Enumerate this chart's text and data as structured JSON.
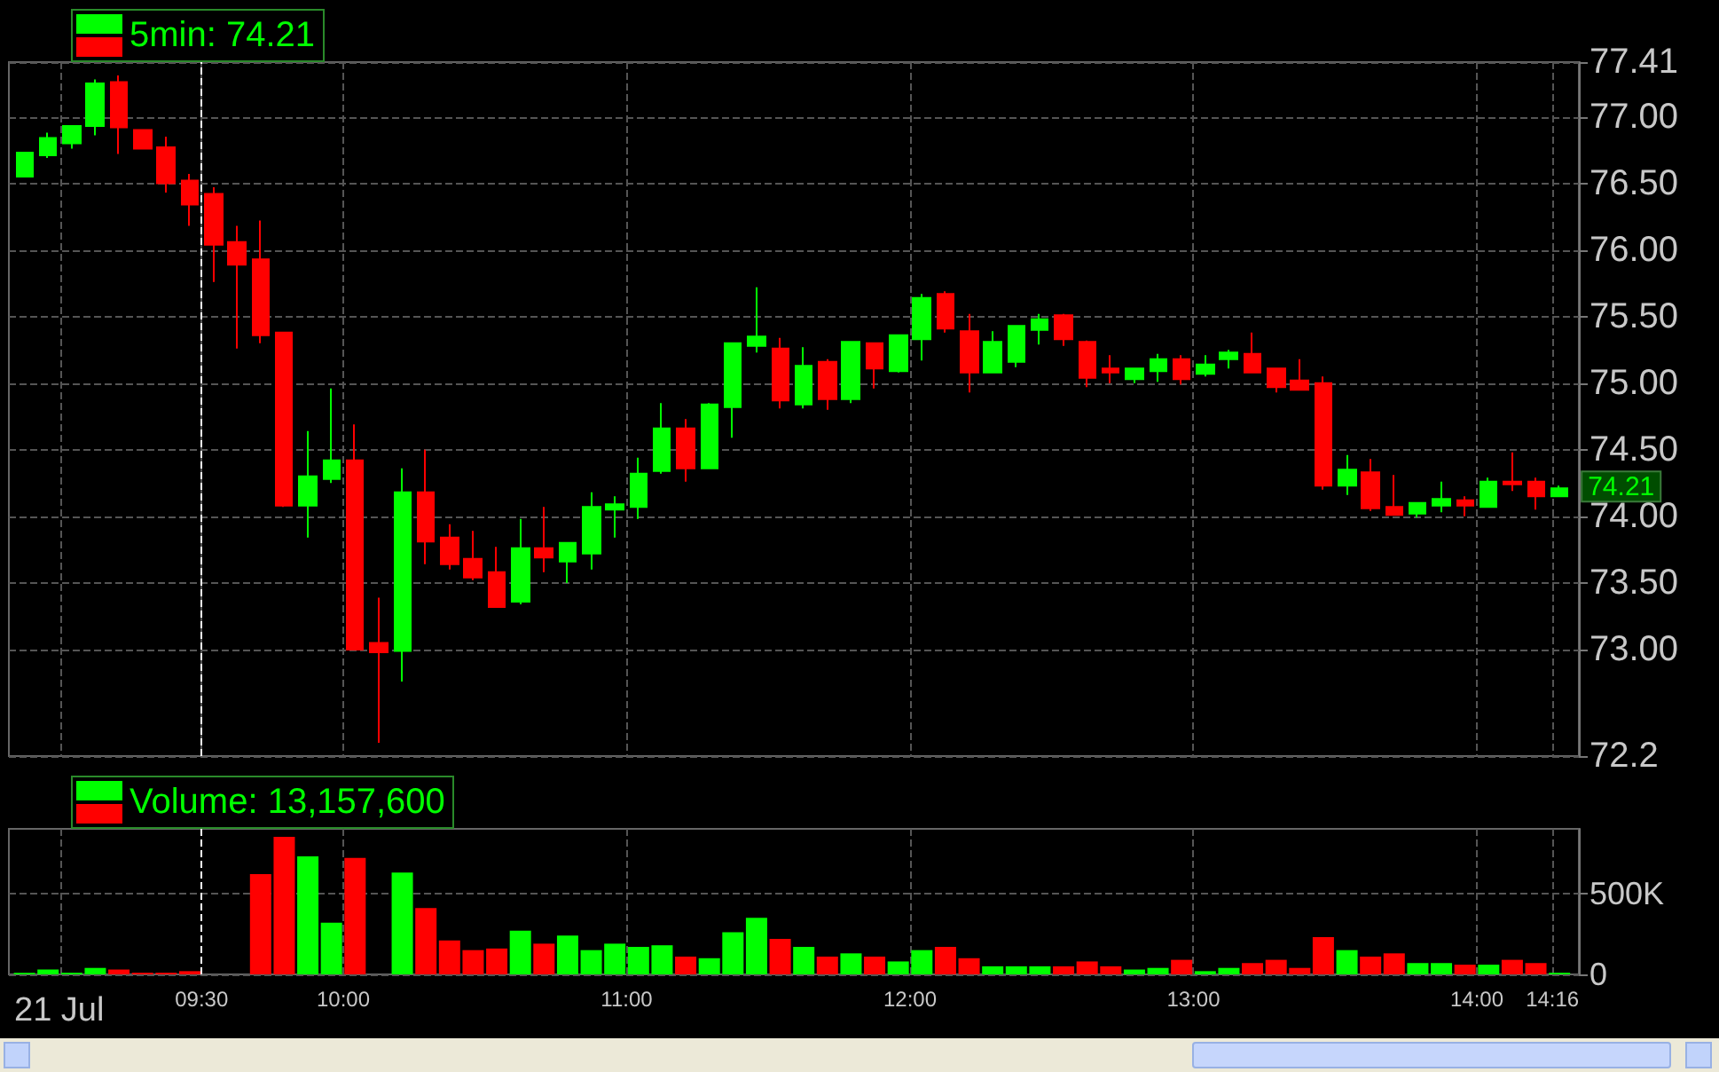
{
  "chart_data": [
    {
      "type": "candlestick",
      "title": "5min: 74.21",
      "x": [
        8.875,
        8.9583,
        9.0417,
        9.125,
        9.2083,
        9.2917,
        9.375,
        9.4583,
        9.5417,
        9.625,
        9.7083,
        9.7917,
        9.875,
        9.9583,
        10.0417,
        10.125,
        10.2083,
        10.2917,
        10.375,
        10.4583,
        10.5417,
        10.625,
        10.7083,
        10.7917,
        10.875,
        10.9583,
        11.0417,
        11.125,
        11.2083,
        11.2917,
        11.375,
        11.4583,
        11.5417,
        11.625,
        11.7083,
        11.7917,
        11.875,
        11.9583,
        12.0417,
        12.125,
        12.2083,
        12.2917,
        12.375,
        12.4583,
        12.5417,
        12.625,
        12.7083,
        12.7917,
        12.875,
        12.9583,
        13.0417,
        13.125,
        13.2083,
        13.2917,
        13.375,
        13.4583,
        13.5417,
        13.625,
        13.7083,
        13.7917,
        13.875,
        13.9583,
        14.0417,
        14.125,
        14.2083,
        14.2917
      ],
      "ohlc": [
        [
          76.55,
          76.73,
          76.55,
          76.73
        ],
        [
          76.71,
          76.88,
          76.69,
          76.84
        ],
        [
          76.8,
          76.93,
          76.76,
          76.93
        ],
        [
          76.93,
          77.28,
          76.86,
          77.25
        ],
        [
          77.26,
          77.31,
          76.72,
          76.92
        ],
        [
          76.9,
          76.9,
          76.76,
          76.76
        ],
        [
          76.77,
          76.85,
          76.43,
          76.5
        ],
        [
          76.52,
          76.57,
          76.18,
          76.34
        ],
        [
          76.42,
          76.47,
          75.76,
          76.04
        ],
        [
          76.06,
          76.18,
          75.26,
          75.89
        ],
        [
          75.93,
          76.22,
          75.3,
          75.36
        ],
        [
          75.38,
          75.38,
          74.07,
          74.08
        ],
        [
          74.08,
          74.64,
          73.84,
          74.3
        ],
        [
          74.28,
          74.96,
          74.25,
          74.42
        ],
        [
          74.42,
          74.69,
          73.0,
          73.0
        ],
        [
          73.05,
          73.39,
          72.3,
          72.98
        ],
        [
          72.99,
          74.36,
          72.76,
          74.18
        ],
        [
          74.18,
          74.5,
          73.64,
          73.81
        ],
        [
          73.84,
          73.94,
          73.6,
          73.64
        ],
        [
          73.68,
          73.89,
          73.52,
          73.54
        ],
        [
          73.58,
          73.77,
          73.32,
          73.32
        ],
        [
          73.36,
          73.98,
          73.34,
          73.76
        ],
        [
          73.76,
          74.07,
          73.58,
          73.69
        ],
        [
          73.66,
          73.8,
          73.5,
          73.8
        ],
        [
          73.72,
          74.18,
          73.6,
          74.07
        ],
        [
          74.05,
          74.15,
          73.84,
          74.09
        ],
        [
          74.07,
          74.44,
          73.98,
          74.32
        ],
        [
          74.34,
          74.85,
          74.32,
          74.66
        ],
        [
          74.66,
          74.73,
          74.26,
          74.36
        ],
        [
          74.36,
          74.85,
          74.36,
          74.84
        ],
        [
          74.82,
          75.3,
          74.59,
          75.3
        ],
        [
          75.28,
          75.72,
          75.23,
          75.35
        ],
        [
          75.26,
          75.34,
          74.81,
          74.87
        ],
        [
          74.84,
          75.27,
          74.81,
          75.13
        ],
        [
          75.16,
          75.18,
          74.8,
          74.88
        ],
        [
          74.88,
          75.31,
          74.85,
          75.31
        ],
        [
          75.3,
          75.3,
          74.96,
          75.11
        ],
        [
          75.09,
          75.36,
          75.08,
          75.36
        ],
        [
          75.33,
          75.67,
          75.17,
          75.64
        ],
        [
          75.67,
          75.69,
          75.38,
          75.41
        ],
        [
          75.39,
          75.52,
          74.93,
          75.08
        ],
        [
          75.08,
          75.39,
          75.08,
          75.31
        ],
        [
          75.16,
          75.43,
          75.12,
          75.43
        ],
        [
          75.4,
          75.52,
          75.29,
          75.48
        ],
        [
          75.51,
          75.52,
          75.28,
          75.33
        ],
        [
          75.31,
          75.32,
          74.97,
          75.04
        ],
        [
          75.11,
          75.21,
          75.0,
          75.08
        ],
        [
          75.03,
          75.11,
          75.0,
          75.11
        ],
        [
          75.09,
          75.22,
          75.01,
          75.18
        ],
        [
          75.18,
          75.21,
          74.99,
          75.03
        ],
        [
          75.07,
          75.21,
          75.05,
          75.14
        ],
        [
          75.18,
          75.25,
          75.11,
          75.23
        ],
        [
          75.22,
          75.38,
          75.08,
          75.08
        ],
        [
          75.11,
          75.11,
          74.93,
          74.97
        ],
        [
          75.02,
          75.18,
          74.95,
          74.95
        ],
        [
          75.0,
          75.05,
          74.2,
          74.23
        ],
        [
          74.23,
          74.46,
          74.16,
          74.35
        ],
        [
          74.33,
          74.43,
          74.04,
          74.06
        ],
        [
          74.07,
          74.31,
          74.01,
          74.01
        ],
        [
          74.02,
          74.1,
          73.99,
          74.1
        ],
        [
          74.08,
          74.26,
          74.03,
          74.13
        ],
        [
          74.12,
          74.15,
          74.0,
          74.08
        ],
        [
          74.07,
          74.29,
          74.07,
          74.26
        ],
        [
          74.26,
          74.48,
          74.19,
          74.24
        ],
        [
          74.26,
          74.29,
          74.05,
          74.15
        ],
        [
          74.15,
          74.23,
          74.15,
          74.21
        ]
      ],
      "colors": [
        "#00ff00",
        "#00ff00",
        "#00ff00",
        "#00ff00",
        "#ff0000",
        "#ff0000",
        "#ff0000",
        "#ff0000",
        "#ff0000",
        "#ff0000",
        "#ff0000",
        "#ff0000",
        "#00ff00",
        "#00ff00",
        "#ff0000",
        "#ff0000",
        "#00ff00",
        "#ff0000",
        "#ff0000",
        "#ff0000",
        "#ff0000",
        "#00ff00",
        "#ff0000",
        "#00ff00",
        "#00ff00",
        "#00ff00",
        "#00ff00",
        "#00ff00",
        "#ff0000",
        "#00ff00",
        "#00ff00",
        "#00ff00",
        "#ff0000",
        "#00ff00",
        "#ff0000",
        "#00ff00",
        "#ff0000",
        "#00ff00",
        "#00ff00",
        "#ff0000",
        "#ff0000",
        "#00ff00",
        "#00ff00",
        "#00ff00",
        "#ff0000",
        "#ff0000",
        "#ff0000",
        "#00ff00",
        "#00ff00",
        "#ff0000",
        "#00ff00",
        "#00ff00",
        "#ff0000",
        "#ff0000",
        "#ff0000",
        "#ff0000",
        "#00ff00",
        "#ff0000",
        "#ff0000",
        "#00ff00",
        "#00ff00",
        "#ff0000",
        "#00ff00",
        "#ff0000",
        "#ff0000",
        "#00ff00"
      ],
      "xlim": [
        8.82,
        14.36
      ],
      "xticks": [
        9,
        9.5,
        10,
        11,
        12,
        13,
        14,
        14.2667
      ],
      "ylim": [
        72.2,
        77.41
      ],
      "yticks": [
        72.2,
        {
          "value": 73,
          "label": "73.00"
        },
        {
          "value": 73.5,
          "label": "73.50"
        },
        {
          "value": 74,
          "label": "74.00"
        },
        {
          "value": 74.5,
          "label": "74.50"
        },
        {
          "value": 75,
          "label": "75.00"
        },
        {
          "value": 75.5,
          "label": "75.50"
        },
        {
          "value": 76,
          "label": "76.00"
        },
        {
          "value": 76.5,
          "label": "76.50"
        },
        {
          "value": 77,
          "label": "77.00"
        },
        77.41
      ],
      "tick_labels": "y",
      "grid": true,
      "ref_lines": [
        {
          "axis": "x",
          "value": 9.5,
          "color": "#ffffff",
          "line_style": "dashed"
        }
      ],
      "annotations": [
        {
          "text": "74.21",
          "x": 14.2917,
          "y": 74.21
        }
      ]
    },
    {
      "type": "bar",
      "title": "Volume: 13,157,600",
      "x": [
        8.875,
        8.9583,
        9.0417,
        9.125,
        9.2083,
        9.2917,
        9.375,
        9.4583,
        9.5417,
        9.625,
        9.7083,
        9.7917,
        9.875,
        9.9583,
        10.0417,
        10.125,
        10.2083,
        10.2917,
        10.375,
        10.4583,
        10.5417,
        10.625,
        10.7083,
        10.7917,
        10.875,
        10.9583,
        11.0417,
        11.125,
        11.2083,
        11.2917,
        11.375,
        11.4583,
        11.5417,
        11.625,
        11.7083,
        11.7917,
        11.875,
        11.9583,
        12.0417,
        12.125,
        12.2083,
        12.2917,
        12.375,
        12.4583,
        12.5417,
        12.625,
        12.7083,
        12.7917,
        12.875,
        12.9583,
        13.0417,
        13.125,
        13.2083,
        13.2917,
        13.375,
        13.4583,
        13.5417,
        13.625,
        13.7083,
        13.7917,
        13.875,
        13.9583,
        14.0417,
        14.125,
        14.2083,
        14.2917
      ],
      "values": [
        10000,
        30000,
        10000,
        40000,
        30000,
        10000,
        10000,
        20000,
        null,
        null,
        620000,
        850000,
        730000,
        320000,
        720000,
        null,
        630000,
        410000,
        210000,
        150000,
        160000,
        270000,
        190000,
        240000,
        150000,
        190000,
        170000,
        180000,
        110000,
        100000,
        260000,
        350000,
        220000,
        170000,
        110000,
        130000,
        110000,
        80000,
        150000,
        170000,
        100000,
        50000,
        50000,
        50000,
        50000,
        80000,
        50000,
        30000,
        40000,
        90000,
        20000,
        40000,
        70000,
        90000,
        40000,
        230000,
        150000,
        110000,
        130000,
        70000,
        70000,
        60000,
        60000,
        90000,
        70000,
        10000
      ],
      "colors": [
        "#00ff00",
        "#00ff00",
        "#00ff00",
        "#00ff00",
        "#ff0000",
        "#ff0000",
        "#ff0000",
        "#ff0000",
        "#ff0000",
        "#ff0000",
        "#ff0000",
        "#ff0000",
        "#00ff00",
        "#00ff00",
        "#ff0000",
        "#ff0000",
        "#00ff00",
        "#ff0000",
        "#ff0000",
        "#ff0000",
        "#ff0000",
        "#00ff00",
        "#ff0000",
        "#00ff00",
        "#00ff00",
        "#00ff00",
        "#00ff00",
        "#00ff00",
        "#ff0000",
        "#00ff00",
        "#00ff00",
        "#00ff00",
        "#ff0000",
        "#00ff00",
        "#ff0000",
        "#00ff00",
        "#ff0000",
        "#00ff00",
        "#00ff00",
        "#ff0000",
        "#ff0000",
        "#00ff00",
        "#00ff00",
        "#00ff00",
        "#ff0000",
        "#ff0000",
        "#ff0000",
        "#00ff00",
        "#00ff00",
        "#ff0000",
        "#00ff00",
        "#00ff00",
        "#ff0000",
        "#ff0000",
        "#ff0000",
        "#ff0000",
        "#00ff00",
        "#ff0000",
        "#ff0000",
        "#00ff00",
        "#00ff00",
        "#ff0000",
        "#00ff00",
        "#ff0000",
        "#ff0000",
        "#00ff00"
      ],
      "xlim": [
        8.82,
        14.36
      ],
      "xticks": [
        {
          "value": 9,
          "label": null
        },
        {
          "value": 9.5,
          "label": "09:30"
        },
        {
          "value": 10,
          "label": "10:00"
        },
        {
          "value": 11,
          "label": "11:00"
        },
        {
          "value": 12,
          "label": "12:00"
        },
        {
          "value": 13,
          "label": "13:00"
        },
        {
          "value": 14,
          "label": "14:00"
        },
        {
          "value": 14.2667,
          "label": "14:16"
        }
      ],
      "ylim": [
        0,
        900000
      ],
      "yticks": [
        0,
        {
          "value": 500000,
          "label": "500K"
        }
      ],
      "grid": true,
      "annotations": [
        "21 Jul"
      ],
      "ref_lines": [
        {
          "axis": "x",
          "value": 9.5,
          "color": "#ffffff",
          "line_style": "dashed"
        }
      ]
    }
  ]
}
